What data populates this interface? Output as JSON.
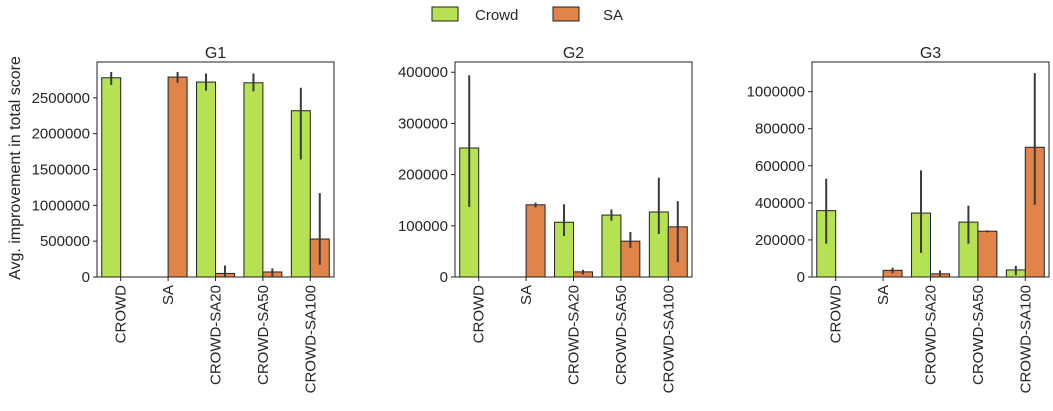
{
  "legend": {
    "items": [
      {
        "label": "Crowd",
        "color": "#b5e153"
      },
      {
        "label": "SA",
        "color": "#e0844a"
      }
    ]
  },
  "ylabel": "Avg. improvement in total score",
  "chart_data": [
    {
      "type": "bar",
      "title": "G1",
      "categories": [
        "CROWD",
        "SA",
        "CROWD-SA20",
        "CROWD-SA50",
        "CROWD-SA100"
      ],
      "ylim": [
        0,
        3000000
      ],
      "yticks": [
        "0",
        "500000",
        "1000000",
        "1500000",
        "2000000",
        "2500000"
      ],
      "series": [
        {
          "name": "Crowd",
          "color": "#b5e153",
          "values": [
            2780000,
            null,
            2720000,
            2710000,
            2320000
          ],
          "err_low": [
            2680000,
            null,
            2600000,
            2590000,
            1640000
          ],
          "err_high": [
            2860000,
            null,
            2840000,
            2840000,
            2640000
          ]
        },
        {
          "name": "SA",
          "color": "#e0844a",
          "values": [
            null,
            2790000,
            50000,
            70000,
            530000
          ],
          "err_low": [
            null,
            2710000,
            0,
            10000,
            170000
          ],
          "err_high": [
            null,
            2860000,
            160000,
            120000,
            1170000
          ]
        }
      ]
    },
    {
      "type": "bar",
      "title": "G2",
      "categories": [
        "CROWD",
        "SA",
        "CROWD-SA20",
        "CROWD-SA50",
        "CROWD-SA100"
      ],
      "ylim": [
        0,
        420000
      ],
      "yticks": [
        "0",
        "100000",
        "200000",
        "300000",
        "400000"
      ],
      "series": [
        {
          "name": "Crowd",
          "color": "#b5e153",
          "values": [
            252000,
            null,
            107000,
            121000,
            127000
          ],
          "err_low": [
            137000,
            null,
            80000,
            110000,
            84000
          ],
          "err_high": [
            394000,
            null,
            142000,
            132000,
            194000
          ]
        },
        {
          "name": "SA",
          "color": "#e0844a",
          "values": [
            null,
            141000,
            10000,
            70000,
            98000
          ],
          "err_low": [
            null,
            136000,
            5000,
            57000,
            29000
          ],
          "err_high": [
            null,
            145000,
            14000,
            88000,
            148000
          ]
        }
      ]
    },
    {
      "type": "bar",
      "title": "G3",
      "categories": [
        "CROWD",
        "SA",
        "CROWD-SA20",
        "CROWD-SA50",
        "CROWD-SA100"
      ],
      "ylim": [
        0,
        1160000
      ],
      "yticks": [
        "0",
        "200000",
        "400000",
        "600000",
        "800000",
        "1000000"
      ],
      "series": [
        {
          "name": "Crowd",
          "color": "#b5e153",
          "values": [
            358000,
            null,
            345000,
            296000,
            38000
          ],
          "err_low": [
            180000,
            null,
            130000,
            180000,
            10000
          ],
          "err_high": [
            530000,
            null,
            575000,
            385000,
            60000
          ]
        },
        {
          "name": "SA",
          "color": "#e0844a",
          "values": [
            null,
            36000,
            17000,
            247000,
            700000
          ],
          "err_low": [
            null,
            20000,
            5000,
            240000,
            390000
          ],
          "err_high": [
            null,
            50000,
            35000,
            252000,
            1100000
          ]
        }
      ]
    }
  ]
}
